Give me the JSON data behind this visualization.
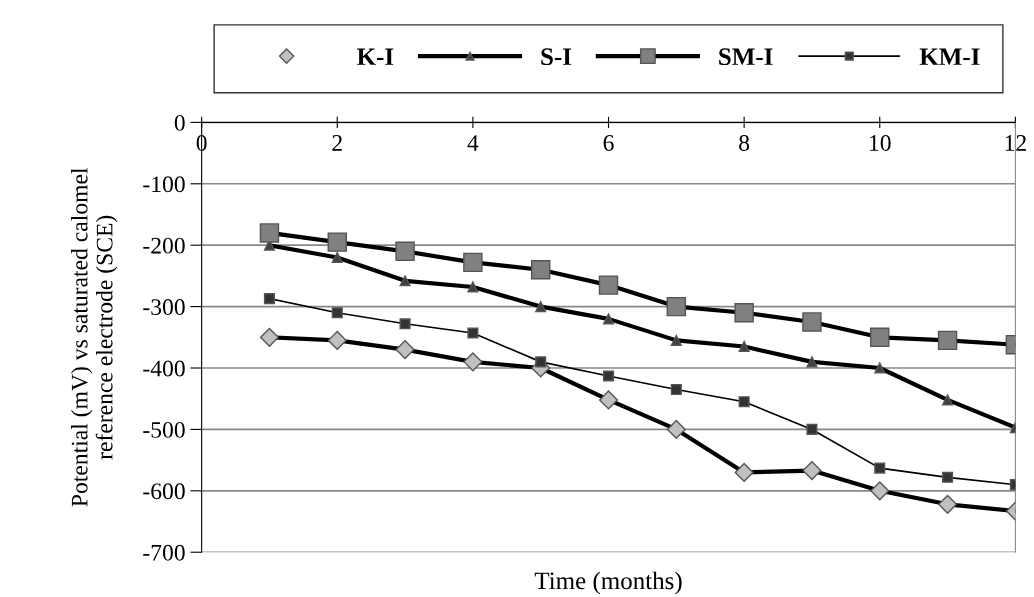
{
  "chart_data": {
    "type": "line",
    "xlabel": "Time (months)",
    "ylabel": "Potential (mV) vs saturated calomel\nreference electrode (SCE)",
    "x": [
      1,
      2,
      3,
      4,
      5,
      6,
      7,
      8,
      9,
      10,
      11,
      12
    ],
    "xlim": [
      0,
      12
    ],
    "xticks": [
      0,
      2,
      4,
      6,
      8,
      10,
      12
    ],
    "ylim": [
      -700,
      0
    ],
    "yticks": [
      -700,
      -600,
      -500,
      -400,
      -300,
      -200,
      -100,
      0
    ],
    "grid": "y",
    "legend": "top",
    "series": [
      {
        "name": "K-I",
        "color": "#c0c0c0",
        "marker": "diamond",
        "values": [
          -350,
          -355,
          -370,
          -390,
          -400,
          -452,
          -500,
          -570,
          -567,
          -600,
          -622,
          -633
        ]
      },
      {
        "name": "S-I",
        "color": "#404040",
        "marker": "triangle",
        "values": [
          -200,
          -220,
          -258,
          -268,
          -300,
          -320,
          -355,
          -365,
          -390,
          -400,
          -452,
          -497
        ]
      },
      {
        "name": "SM-I",
        "color": "#808080",
        "marker": "square",
        "values": [
          -180,
          -195,
          -210,
          -228,
          -240,
          -265,
          -300,
          -310,
          -325,
          -350,
          -355,
          -362
        ]
      },
      {
        "name": "KM-I",
        "color": "#333333",
        "marker": "square",
        "values": [
          -287,
          -310,
          -328,
          -343,
          -390,
          -413,
          -435,
          -455,
          -500,
          -563,
          -578,
          -590
        ]
      }
    ]
  }
}
